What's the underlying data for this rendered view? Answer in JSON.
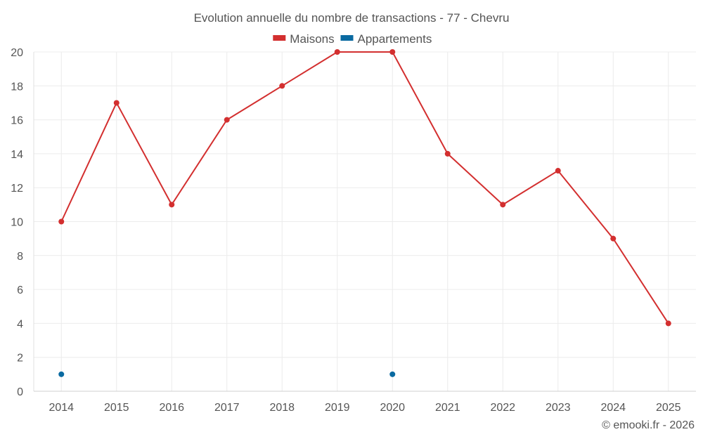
{
  "chart_data": {
    "type": "line",
    "title": "Evolution annuelle du nombre de transactions - 77 - Chevru",
    "xlabel": "",
    "ylabel": "",
    "categories": [
      "2014",
      "2015",
      "2016",
      "2017",
      "2018",
      "2019",
      "2020",
      "2021",
      "2022",
      "2023",
      "2024",
      "2025"
    ],
    "ylim": [
      0,
      20
    ],
    "yticks": [
      0,
      2,
      4,
      6,
      8,
      10,
      12,
      14,
      16,
      18,
      20
    ],
    "grid": true,
    "legend_position": "top-center",
    "series": [
      {
        "name": "Maisons",
        "color": "#d32f2f",
        "values": [
          10,
          17,
          11,
          16,
          18,
          20,
          20,
          14,
          11,
          13,
          9,
          4
        ]
      },
      {
        "name": "Appartements",
        "color": "#0a6aa1",
        "values": [
          1,
          null,
          null,
          null,
          null,
          null,
          1,
          null,
          null,
          null,
          null,
          null
        ]
      }
    ]
  },
  "credit": "© emooki.fr - 2026"
}
